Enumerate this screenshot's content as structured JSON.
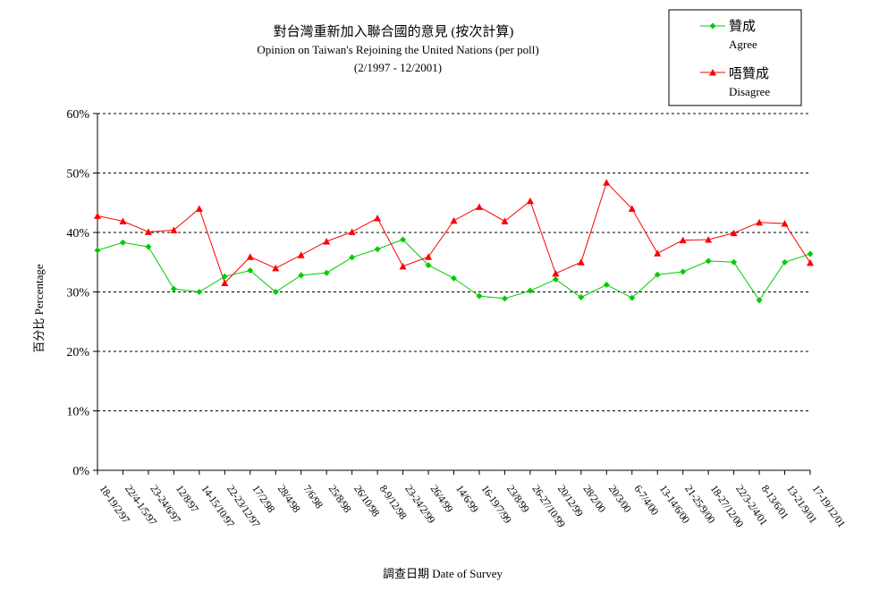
{
  "chart_data": {
    "type": "line",
    "title": "對台灣重新加入聯合國的意見 (按次計算)",
    "subtitle": "Opinion on Taiwan's Rejoining the United Nations (per poll)",
    "date_range": "(2/1997 - 12/2001)",
    "xlabel": "調查日期 Date of Survey",
    "ylabel": "百分比 Percentage",
    "ylim": [
      0,
      60
    ],
    "yticks": [
      0,
      10,
      20,
      30,
      40,
      50,
      60
    ],
    "ytick_labels": [
      "0%",
      "10%",
      "20%",
      "30%",
      "40%",
      "50%",
      "60%"
    ],
    "grid": "horizontal-dashed",
    "legend_position": "top-right",
    "categories": [
      "18-19/2/97",
      "22/4-1/5/97",
      "23-24/6/97",
      "12/8/97",
      "14-15/10/97",
      "22-23/12/97",
      "17/2/98",
      "28/4/98",
      "7/6/98",
      "25/8/98",
      "26/10/98",
      "8-9/12/98",
      "23-24/2/99",
      "26/4/99",
      "14/6/99",
      "16-19/7/99",
      "23/8/99",
      "26-27/10/99",
      "20/12/99",
      "28/2/00",
      "20/3/00",
      "6-7/4/00",
      "13-14/6/00",
      "21-25/9/00",
      "18-27/12/00",
      "22/3-2/4/01",
      "8-13/6/01",
      "13-21/9/01",
      "17-19/12/01"
    ],
    "series": [
      {
        "name": "贊成",
        "name_en": "Agree",
        "color": "#00cc00",
        "marker": "diamond",
        "values": [
          37.0,
          38.3,
          37.6,
          30.5,
          30.0,
          32.6,
          33.6,
          30.0,
          32.8,
          33.2,
          35.8,
          37.2,
          38.8,
          34.5,
          32.3,
          29.3,
          28.9,
          30.2,
          32.1,
          29.1,
          31.2,
          29.0,
          32.9,
          33.4,
          35.2,
          35.0,
          28.6,
          35.0,
          36.4
        ]
      },
      {
        "name": "唔贊成",
        "name_en": "Disagree",
        "color": "#ff0000",
        "marker": "triangle",
        "values": [
          42.8,
          41.9,
          40.1,
          40.4,
          44.0,
          31.5,
          35.9,
          34.0,
          36.2,
          38.5,
          40.1,
          42.4,
          34.3,
          35.9,
          42.0,
          44.3,
          41.9,
          45.3,
          33.1,
          35.0,
          48.4,
          44.0,
          36.5,
          38.7,
          38.8,
          39.9,
          41.7,
          41.5,
          34.9
        ]
      }
    ]
  }
}
